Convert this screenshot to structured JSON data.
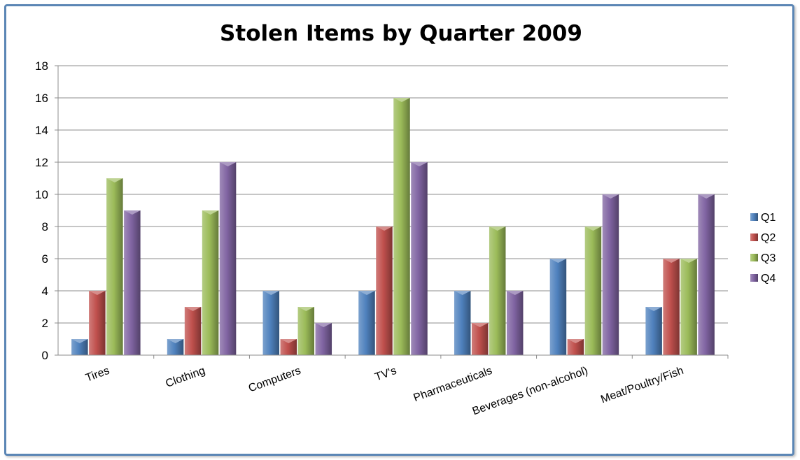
{
  "chart_data": {
    "type": "bar",
    "title": "Stolen Items by Quarter 2009",
    "xlabel": "",
    "ylabel": "",
    "categories": [
      "Tires",
      "Clothing",
      "Computers",
      "TV's",
      "Pharmaceuticals",
      "Beverages (non-alcohol)",
      "Meat/Poultry/Fish"
    ],
    "series": [
      {
        "name": "Q1",
        "color": "#4f81bd",
        "values": [
          1,
          1,
          4,
          4,
          4,
          6,
          3
        ]
      },
      {
        "name": "Q2",
        "color": "#c0504d",
        "values": [
          4,
          3,
          1,
          8,
          2,
          1,
          6
        ]
      },
      {
        "name": "Q3",
        "color": "#9bbb59",
        "values": [
          11,
          9,
          3,
          16,
          8,
          8,
          6
        ]
      },
      {
        "name": "Q4",
        "color": "#8064a2",
        "values": [
          9,
          12,
          2,
          12,
          4,
          10,
          10
        ]
      }
    ],
    "ylim": [
      0,
      18
    ],
    "yticks": [
      0,
      2,
      4,
      6,
      8,
      10,
      12,
      14,
      16,
      18
    ],
    "grid": true,
    "legend_position": "right"
  }
}
